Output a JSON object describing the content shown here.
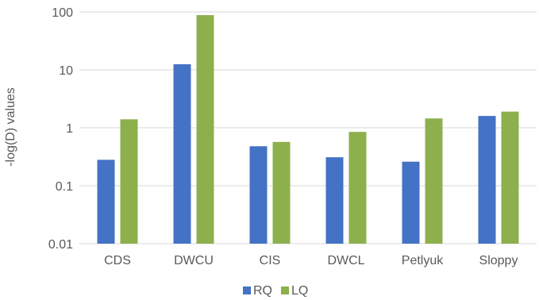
{
  "chart_data": {
    "type": "bar",
    "categories": [
      "CDS",
      "DWCU",
      "CIS",
      "DWCL",
      "Petlyuk",
      "Sloppy"
    ],
    "series": [
      {
        "name": "RQ",
        "values": [
          0.28,
          12.5,
          0.48,
          0.31,
          0.26,
          1.6
        ],
        "color": "#4472C4"
      },
      {
        "name": "LQ",
        "values": [
          1.4,
          88,
          0.57,
          0.85,
          1.45,
          1.9
        ],
        "color": "#8DB04C"
      }
    ],
    "ylabel": "-log(D) values",
    "yscale": "log",
    "ylim": [
      0.01,
      100
    ],
    "yticks": [
      "0.01",
      "0.1",
      "1",
      "10",
      "100"
    ],
    "grid": true,
    "legend": "bottom"
  }
}
